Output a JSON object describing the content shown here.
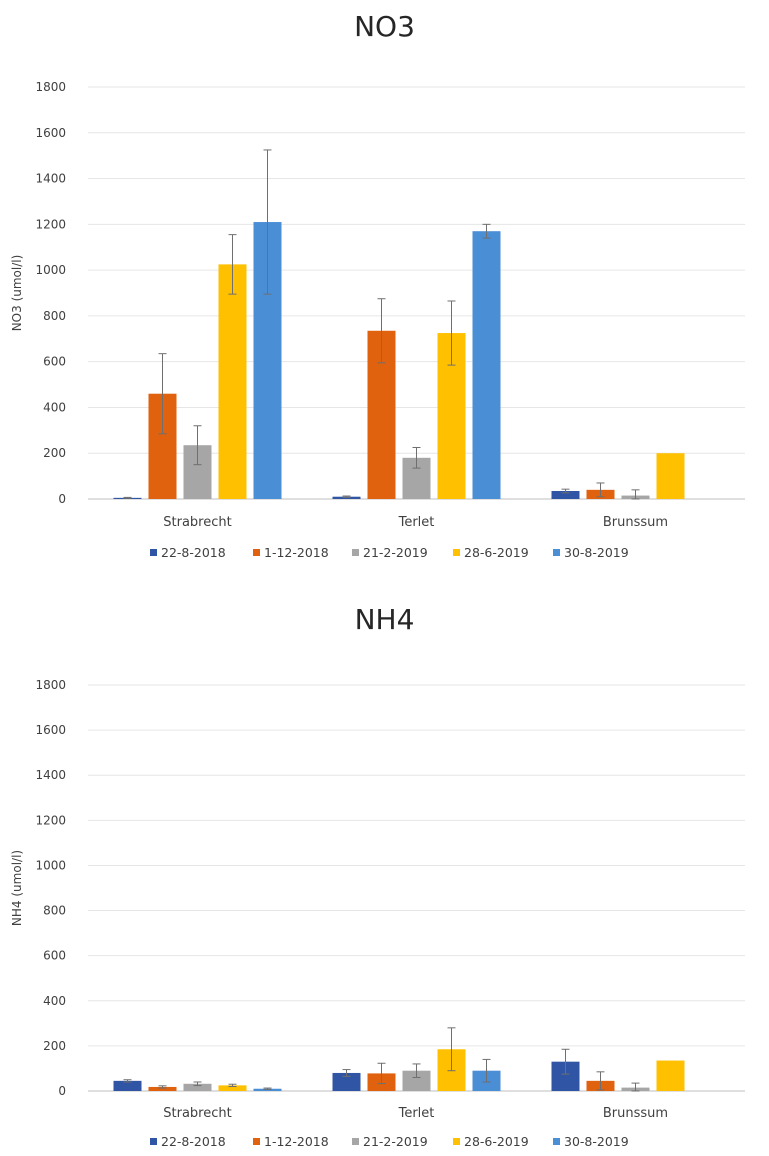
{
  "chart_data": [
    {
      "type": "bar",
      "title": "NO3",
      "ylabel": "NO3 (umol/l)",
      "xlabel": "",
      "ylim": [
        0,
        1800
      ],
      "yticks": [
        0,
        200,
        400,
        600,
        800,
        1000,
        1200,
        1400,
        1600,
        1800
      ],
      "grid": true,
      "legend": "bottom",
      "error_bars": true,
      "categories": [
        "Strabrecht",
        "Terlet",
        "Brunssum"
      ],
      "series": [
        {
          "name": "22-8-2018",
          "color": "#2f55a4",
          "values": [
            5,
            10,
            35
          ],
          "errors": [
            2,
            3,
            8
          ]
        },
        {
          "name": "1-12-2018",
          "color": "#e0610e",
          "values": [
            460,
            735,
            40
          ],
          "errors": [
            175,
            140,
            30
          ]
        },
        {
          "name": "21-2-2019",
          "color": "#a6a6a6",
          "values": [
            235,
            180,
            15
          ],
          "errors": [
            85,
            45,
            25
          ]
        },
        {
          "name": "28-6-2019",
          "color": "#ffc000",
          "values": [
            1025,
            725,
            200
          ],
          "errors": [
            130,
            140,
            0
          ]
        },
        {
          "name": "30-8-2019",
          "color": "#4a8ed6",
          "values": [
            1210,
            1170,
            null
          ],
          "errors": [
            315,
            30,
            null
          ]
        }
      ]
    },
    {
      "type": "bar",
      "title": "NH4",
      "ylabel": "NH4 (umol/l)",
      "xlabel": "",
      "ylim": [
        0,
        1800
      ],
      "yticks": [
        0,
        200,
        400,
        600,
        800,
        1000,
        1200,
        1400,
        1600,
        1800
      ],
      "grid": true,
      "legend": "bottom",
      "error_bars": true,
      "categories": [
        "Strabrecht",
        "Terlet",
        "Brunssum"
      ],
      "series": [
        {
          "name": "22-8-2018",
          "color": "#2f55a4",
          "values": [
            45,
            80,
            130
          ],
          "errors": [
            5,
            15,
            55
          ]
        },
        {
          "name": "1-12-2018",
          "color": "#e0610e",
          "values": [
            18,
            78,
            45
          ],
          "errors": [
            5,
            45,
            40
          ]
        },
        {
          "name": "21-2-2019",
          "color": "#a6a6a6",
          "values": [
            32,
            90,
            15
          ],
          "errors": [
            8,
            30,
            20
          ]
        },
        {
          "name": "28-6-2019",
          "color": "#ffc000",
          "values": [
            25,
            185,
            135
          ],
          "errors": [
            5,
            95,
            0
          ]
        },
        {
          "name": "30-8-2019",
          "color": "#4a8ed6",
          "values": [
            10,
            90,
            null
          ],
          "errors": [
            3,
            50,
            null
          ]
        }
      ]
    }
  ]
}
